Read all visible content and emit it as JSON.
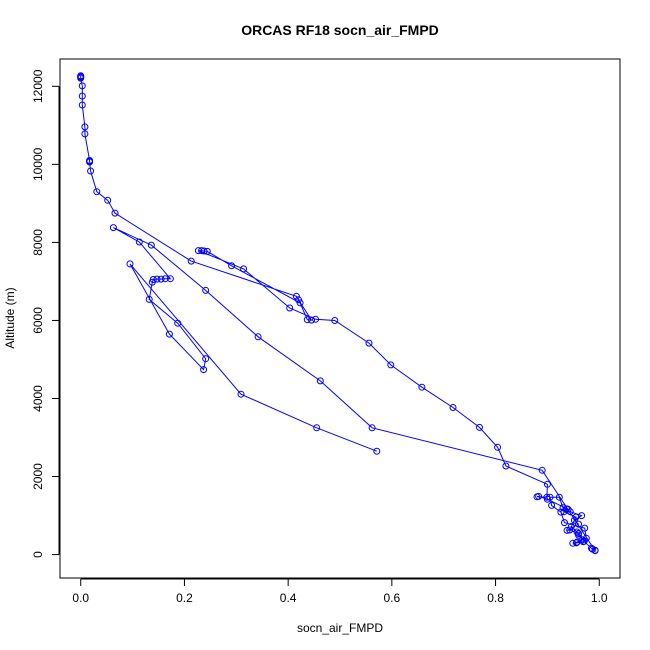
{
  "chart_data": {
    "type": "line",
    "title": "ORCAS RF18 socn_air_FMPD",
    "xlabel": "socn_air_FMPD",
    "ylabel": "Altitude (m)",
    "xlim": [
      -0.04,
      1.04
    ],
    "ylim": [
      -600,
      12700
    ],
    "xticks": [
      0.0,
      0.2,
      0.4,
      0.6,
      0.8,
      1.0
    ],
    "xtick_labels": [
      "0.0",
      "0.2",
      "0.4",
      "0.6",
      "0.8",
      "1.0"
    ],
    "yticks": [
      0,
      2000,
      4000,
      6000,
      8000,
      10000,
      12000
    ],
    "ytick_labels": [
      "0",
      "2000",
      "4000",
      "6000",
      "8000",
      "10000",
      "12000"
    ],
    "grid": false,
    "legend": "none",
    "series": [
      {
        "color": "#0000ff",
        "marker": "open-circle",
        "points": [
          [
            0.0,
            12270
          ],
          [
            0.0,
            12250
          ],
          [
            0.0,
            12230
          ],
          [
            0.0,
            12210
          ],
          [
            0.003,
            12010
          ],
          [
            0.003,
            11750
          ],
          [
            0.003,
            11520
          ],
          [
            0.008,
            10960
          ],
          [
            0.008,
            10780
          ],
          [
            0.017,
            10100
          ],
          [
            0.017,
            10080
          ],
          [
            0.017,
            10060
          ],
          [
            0.019,
            9830
          ],
          [
            0.031,
            9300
          ],
          [
            0.052,
            9080
          ],
          [
            0.066,
            8750
          ],
          [
            0.213,
            7520
          ],
          [
            0.416,
            6620
          ],
          [
            0.42,
            6530
          ],
          [
            0.445,
            6010
          ],
          [
            0.437,
            6020
          ],
          [
            0.423,
            6450
          ],
          [
            0.291,
            7400
          ],
          [
            0.244,
            7770
          ],
          [
            0.238,
            7780
          ],
          [
            0.233,
            7790
          ],
          [
            0.227,
            7790
          ],
          [
            0.314,
            7320
          ],
          [
            0.403,
            6320
          ],
          [
            0.453,
            6030
          ],
          [
            0.49,
            6000
          ],
          [
            0.556,
            5420
          ],
          [
            0.598,
            4860
          ],
          [
            0.658,
            4290
          ],
          [
            0.718,
            3770
          ],
          [
            0.769,
            3260
          ],
          [
            0.804,
            2750
          ],
          [
            0.82,
            2270
          ],
          [
            0.9,
            1800
          ],
          [
            0.899,
            1470
          ],
          [
            0.88,
            1480
          ],
          [
            0.883,
            1490
          ],
          [
            0.9,
            1420
          ],
          [
            0.94,
            1160
          ],
          [
            0.937,
            1170
          ],
          [
            0.932,
            1100
          ],
          [
            0.955,
            960
          ],
          [
            0.946,
            720
          ],
          [
            0.957,
            580
          ],
          [
            0.96,
            500
          ],
          [
            0.968,
            380
          ],
          [
            0.957,
            320
          ],
          [
            0.949,
            290
          ],
          [
            0.956,
            300
          ],
          [
            0.969,
            330
          ],
          [
            0.975,
            420
          ],
          [
            0.972,
            680
          ],
          [
            0.933,
            820
          ],
          [
            0.926,
            1090
          ],
          [
            0.908,
            1260
          ],
          [
            0.905,
            1470
          ],
          [
            0.923,
            1470
          ],
          [
            0.93,
            1200
          ],
          [
            0.944,
            1100
          ],
          [
            0.966,
            1000
          ],
          [
            0.952,
            880
          ],
          [
            0.96,
            780
          ],
          [
            0.938,
            620
          ],
          [
            0.943,
            630
          ],
          [
            0.96,
            540
          ],
          [
            0.971,
            340
          ],
          [
            0.985,
            160
          ],
          [
            0.987,
            140
          ],
          [
            0.992,
            110
          ],
          [
            0.992,
            100
          ],
          [
            0.89,
            2160
          ],
          [
            0.562,
            3250
          ],
          [
            0.462,
            4450
          ],
          [
            0.342,
            5580
          ],
          [
            0.241,
            6770
          ],
          [
            0.136,
            7930
          ],
          [
            0.063,
            8380
          ],
          [
            0.113,
            8010
          ],
          [
            0.173,
            7070
          ],
          [
            0.163,
            7070
          ],
          [
            0.155,
            7060
          ],
          [
            0.147,
            7060
          ],
          [
            0.14,
            7050
          ],
          [
            0.138,
            6980
          ],
          [
            0.132,
            6540
          ],
          [
            0.187,
            5930
          ],
          [
            0.241,
            5020
          ],
          [
            0.237,
            4740
          ],
          [
            0.171,
            5650
          ],
          [
            0.095,
            7450
          ],
          [
            0.309,
            4110
          ],
          [
            0.455,
            3250
          ],
          [
            0.571,
            2650
          ]
        ]
      }
    ]
  }
}
